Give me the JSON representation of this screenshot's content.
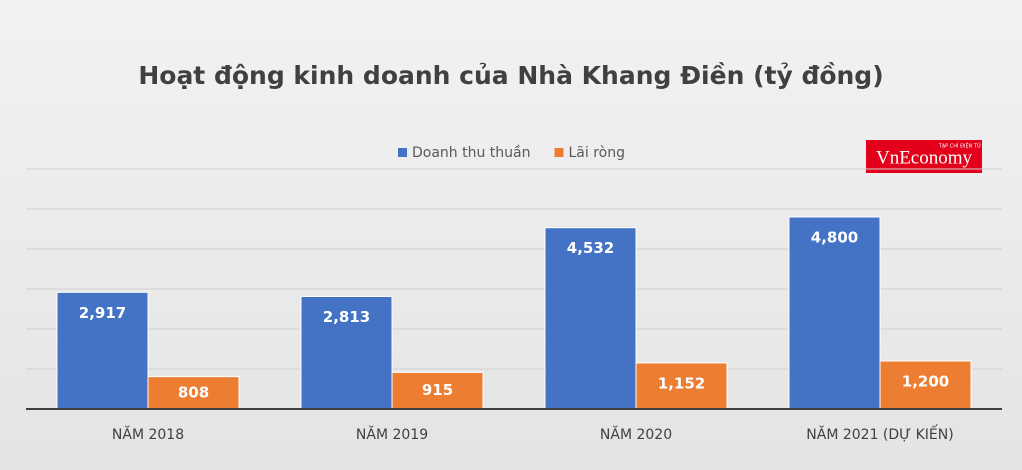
{
  "chart_data": {
    "type": "bar",
    "title": "Hoạt động kinh doanh của Nhà Khang Điền (tỷ đồng)",
    "watermark": "VnEconomy",
    "watermark_subtitle": "TẠP CHÍ ĐIỆN TỬ",
    "categories": [
      "NĂM 2018",
      "NĂM 2019",
      "NĂM 2020",
      "NĂM 2021 (DỰ KIẾN)"
    ],
    "series": [
      {
        "name": "Doanh thu thuần",
        "color": "#4472c4",
        "values": [
          2917,
          2813,
          4532,
          4800
        ],
        "value_labels": [
          "2,917",
          "2,813",
          "4,532",
          "4,800"
        ]
      },
      {
        "name": "Lãi ròng",
        "color": "#ed7d31",
        "values": [
          808,
          915,
          1152,
          1200
        ],
        "value_labels": [
          "808",
          "915",
          "1,152",
          "1,200"
        ]
      }
    ],
    "ylim": [
      0,
      6000
    ],
    "yticks": [
      0,
      1000,
      2000,
      3000,
      4000,
      5000,
      6000
    ],
    "grid": true,
    "legend": "top"
  }
}
